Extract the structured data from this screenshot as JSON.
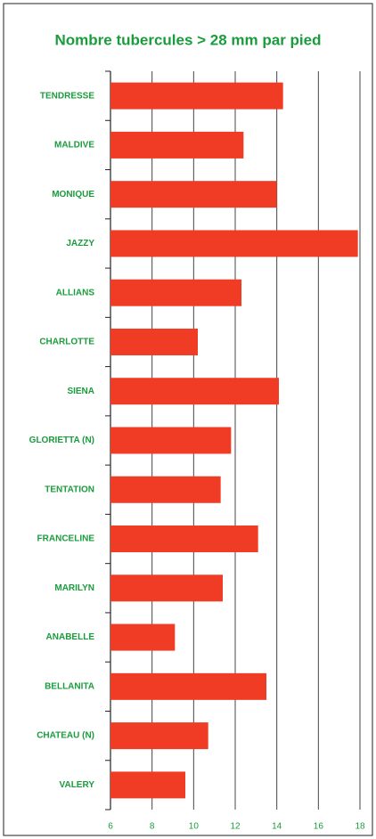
{
  "chart_data": {
    "type": "bar",
    "orientation": "horizontal",
    "title": "Nombre tubercules > 28 mm par pied",
    "categories": [
      "TENDRESSE",
      "MALDIVE",
      "MONIQUE",
      "JAZZY",
      "ALLIANS",
      "CHARLOTTE",
      "SIENA",
      "GLORIETTA (N)",
      "TENTATION",
      "FRANCELINE",
      "MARILYN",
      "ANABELLE",
      "BELLANITA",
      "CHATEAU (N)",
      "VALERY"
    ],
    "values": [
      14.3,
      12.4,
      14.0,
      17.9,
      12.3,
      10.2,
      14.1,
      11.8,
      11.3,
      13.1,
      11.4,
      9.1,
      13.5,
      10.7,
      9.6
    ],
    "color": "#f03c24",
    "xlim": [
      6,
      18
    ],
    "xticks": [
      6,
      8,
      10,
      12,
      14,
      16,
      18
    ],
    "grid": true
  }
}
